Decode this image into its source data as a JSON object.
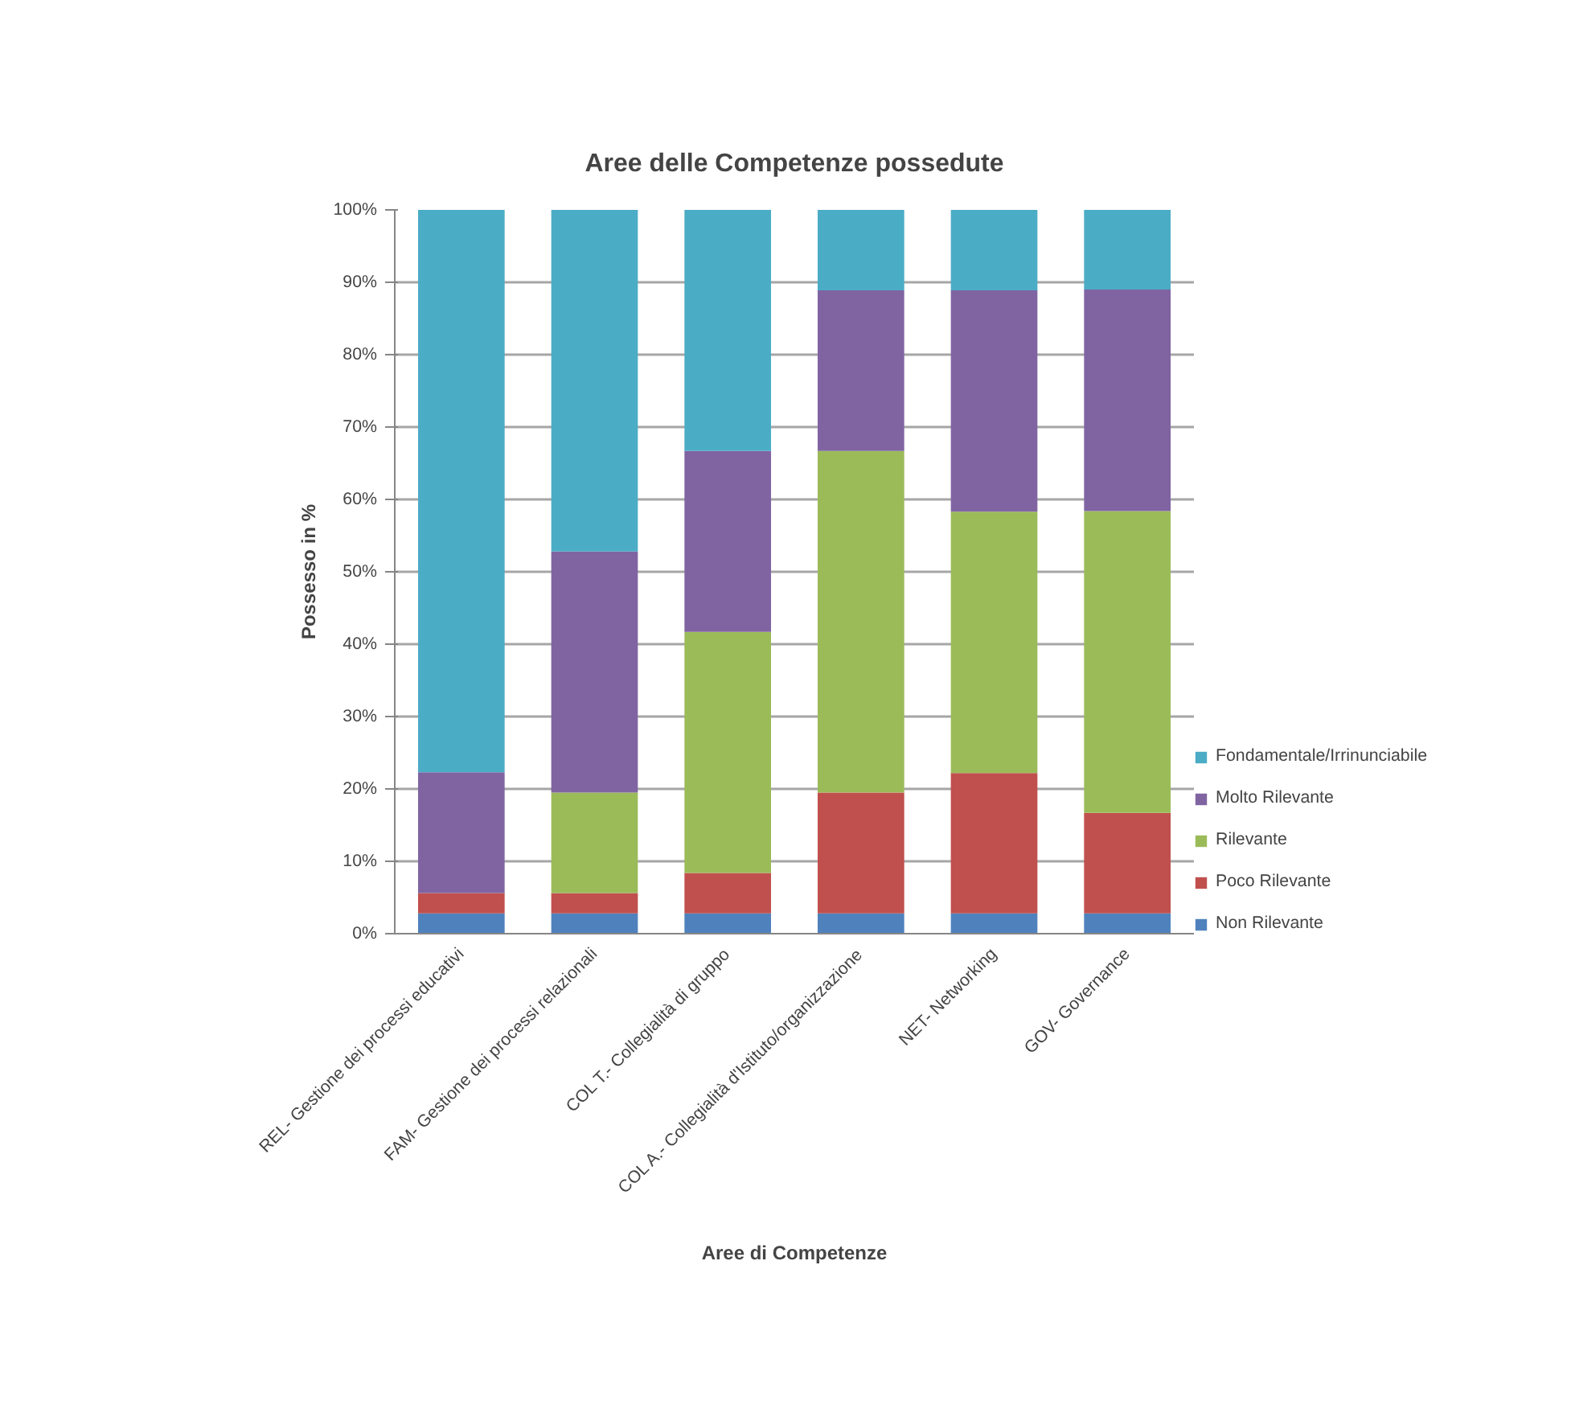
{
  "chart_data": {
    "type": "bar",
    "stacked": true,
    "title": "Aree delle Competenze possedute",
    "xlabel": "Aree di Competenze",
    "ylabel": "Possesso in %",
    "categories": [
      "REL- Gestione dei processi educativi",
      "FAM- Gestione dei processi relazionali",
      "COL T.- Collegialità di gruppo",
      "COL A.- Collegialità d'Istituto/organizzazione",
      "NET- Networking",
      "GOV- Governance"
    ],
    "series": [
      {
        "name": "Non Rilevante",
        "color": "#4f81bd",
        "values": [
          2.8,
          2.8,
          2.8,
          2.8,
          2.8,
          2.8
        ]
      },
      {
        "name": "Poco Rilevante",
        "color": "#c0504d",
        "values": [
          2.8,
          2.8,
          5.6,
          16.7,
          19.4,
          13.9
        ]
      },
      {
        "name": "Rilevante",
        "color": "#9bbb59",
        "values": [
          0,
          13.9,
          33.3,
          47.2,
          36.1,
          41.7
        ]
      },
      {
        "name": "Molto Rilevante",
        "color": "#8064a2",
        "values": [
          16.7,
          33.3,
          25.0,
          22.2,
          30.6,
          30.6
        ]
      },
      {
        "name": "Fondamentale/Irrinunciabile",
        "color": "#4bacc6",
        "values": [
          77.8,
          47.2,
          33.3,
          11.1,
          11.1,
          11.1
        ]
      }
    ],
    "ylim": [
      0,
      100
    ],
    "yticks": [
      {
        "value": 0,
        "label": "0%"
      },
      {
        "value": 10,
        "label": "10%"
      },
      {
        "value": 20,
        "label": "20%"
      },
      {
        "value": 30,
        "label": "30%"
      },
      {
        "value": 40,
        "label": "40%"
      },
      {
        "value": 50,
        "label": "50%"
      },
      {
        "value": 60,
        "label": "60%"
      },
      {
        "value": 70,
        "label": "70%"
      },
      {
        "value": 80,
        "label": "80%"
      },
      {
        "value": 90,
        "label": "90%"
      },
      {
        "value": 100,
        "label": "100%"
      }
    ],
    "grid": "y",
    "legend": "right"
  }
}
